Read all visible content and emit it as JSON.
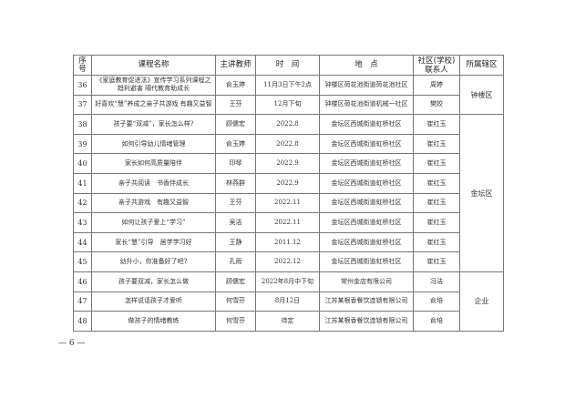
{
  "table": {
    "headers": [
      "序号",
      "课程名称",
      "主讲教师",
      "时　间",
      "地　点",
      "社区(学校)\n联系人",
      "所属辖区"
    ],
    "rows": [
      {
        "no": "36",
        "course": "《家庭教育促进法》宣传学习系列课程之趋利避害 隔代教育助成长",
        "teacher": "俞玉婷",
        "time": "11月3日下午2点",
        "place": "钟楼区荷花池街道荷花池社区",
        "contact": "周婷"
      },
      {
        "no": "37",
        "course": "好喜欢“慧”养成之亲子共游戏 有趣又益智",
        "teacher": "王芬",
        "time": "12月下旬",
        "place": "钟楼区荷花池街道机械一社区",
        "contact": "樊姣"
      },
      {
        "no": "38",
        "course": "孩子要“双减”，家长怎么样?",
        "teacher": "顾儒宏",
        "time": "2022.8",
        "place": "金坛区西城街道虹桥社区",
        "contact": "崔红玉"
      },
      {
        "no": "39",
        "course": "如何引导幼儿情绪管理",
        "teacher": "俞玉婷",
        "time": "2022.8",
        "place": "金坛区西城街道虹桥社区",
        "contact": "崔红玉"
      },
      {
        "no": "40",
        "course": "家长如何高质量陪伴",
        "teacher": "印琴",
        "time": "2022.9",
        "place": "金坛区西城街道虹桥社区",
        "contact": "崔红玉"
      },
      {
        "no": "41",
        "course": "亲子共阅读　书香伴成长",
        "teacher": "林燕群",
        "time": "2022.9",
        "place": "金坛区西城街道虹桥社区",
        "contact": "崔红玉"
      },
      {
        "no": "42",
        "course": "亲子共游戏　有趣又益智",
        "teacher": "王芬",
        "time": "2022.11",
        "place": "金坛区西城街道虹桥社区",
        "contact": "崔红玉"
      },
      {
        "no": "43",
        "course": "如何让孩子爱上“学习”",
        "teacher": "吴洁",
        "time": "2022.11",
        "place": "金坛区西城街道虹桥社区",
        "contact": "崔红玉"
      },
      {
        "no": "44",
        "course": "家长“慧”引导　居学学习好",
        "teacher": "王静",
        "time": "2011.12",
        "place": "金坛区西城街道虹桥社区",
        "contact": "崔红玉"
      },
      {
        "no": "45",
        "course": "幼升小，你准备好了吧?",
        "teacher": "孔雨",
        "time": "2022.12",
        "place": "金坛区西城街道虹桥社区",
        "contact": "崔红玉"
      },
      {
        "no": "46",
        "course": "孩子要双减，家长怎么做",
        "teacher": "顾儒宏",
        "time": "2022年8月中下旬",
        "place": "常州金店有限公司",
        "contact": "冯洁"
      },
      {
        "no": "47",
        "course": "怎样说话孩子才爱听",
        "teacher": "何雪芬",
        "time": "8月12日",
        "place": "江苏某根香餐饮连锁有限公司",
        "contact": "俞培"
      },
      {
        "no": "48",
        "course": "做孩子的情绪教练",
        "teacher": "何雪芬",
        "time": "待定",
        "place": "江苏某根香餐饮连锁有限公司",
        "contact": "俞培"
      }
    ],
    "districts": [
      "钟楼区",
      "金坛区",
      "企业"
    ]
  },
  "footer": {
    "page_number": "— 6 —"
  }
}
